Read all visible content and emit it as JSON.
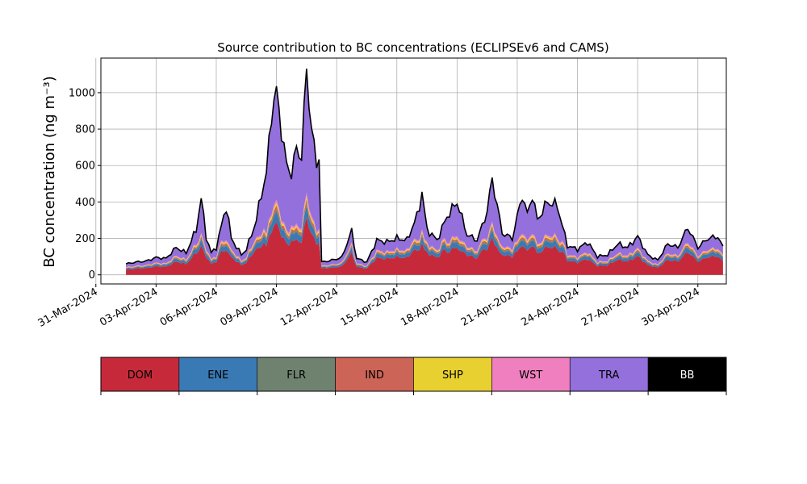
{
  "chart_data": {
    "type": "area",
    "title": "Source contribution to BC concentrations (ECLIPSEv6 and CAMS)",
    "ylabel": "BC concentration (ng m⁻³)",
    "xlabel": "",
    "ylim": [
      -50,
      1190
    ],
    "xlim": [
      "2024-03-31T06:00",
      "2024-05-01T10:00"
    ],
    "yticks": [
      0,
      200,
      400,
      600,
      800,
      1000
    ],
    "xticks": [
      "31-Mar-2024",
      "03-Apr-2024",
      "06-Apr-2024",
      "09-Apr-2024",
      "12-Apr-2024",
      "15-Apr-2024",
      "18-Apr-2024",
      "21-Apr-2024",
      "24-Apr-2024",
      "27-Apr-2024",
      "30-Apr-2024"
    ],
    "grid": true,
    "start": "2024-04-01T12:00",
    "end": "2024-05-01T06:00",
    "total_points": [
      [
        "2024-04-01T12:00",
        60
      ],
      [
        "2024-04-02T00:00",
        70
      ],
      [
        "2024-04-02T12:00",
        75
      ],
      [
        "2024-04-03T00:00",
        95
      ],
      [
        "2024-04-03T12:00",
        90
      ],
      [
        "2024-04-04T00:00",
        150
      ],
      [
        "2024-04-04T12:00",
        120
      ],
      [
        "2024-04-05T00:00",
        250
      ],
      [
        "2024-04-05T06:00",
        420
      ],
      [
        "2024-04-05T12:00",
        210
      ],
      [
        "2024-04-05T18:00",
        120
      ],
      [
        "2024-04-06T00:00",
        150
      ],
      [
        "2024-04-06T12:00",
        380
      ],
      [
        "2024-04-06T18:00",
        200
      ],
      [
        "2024-04-07T06:00",
        110
      ],
      [
        "2024-04-07T12:00",
        140
      ],
      [
        "2024-04-08T00:00",
        300
      ],
      [
        "2024-04-08T06:00",
        450
      ],
      [
        "2024-04-08T12:00",
        550
      ],
      [
        "2024-04-08T18:00",
        900
      ],
      [
        "2024-04-09T00:00",
        1000
      ],
      [
        "2024-04-09T06:00",
        800
      ],
      [
        "2024-04-09T12:00",
        600
      ],
      [
        "2024-04-09T18:00",
        560
      ],
      [
        "2024-04-10T00:00",
        690
      ],
      [
        "2024-04-10T06:00",
        650
      ],
      [
        "2024-04-10T12:00",
        1130
      ],
      [
        "2024-04-10T18:00",
        800
      ],
      [
        "2024-04-11T00:00",
        600
      ],
      [
        "2024-04-11T03:00",
        670
      ],
      [
        "2024-04-11T06:00",
        70
      ],
      [
        "2024-04-11T18:00",
        80
      ],
      [
        "2024-04-12T06:00",
        95
      ],
      [
        "2024-04-12T18:00",
        240
      ],
      [
        "2024-04-13T00:00",
        90
      ],
      [
        "2024-04-13T12:00",
        70
      ],
      [
        "2024-04-14T00:00",
        190
      ],
      [
        "2024-04-14T12:00",
        180
      ],
      [
        "2024-04-15T00:00",
        200
      ],
      [
        "2024-04-15T12:00",
        190
      ],
      [
        "2024-04-16T00:00",
        320
      ],
      [
        "2024-04-16T06:00",
        450
      ],
      [
        "2024-04-16T12:00",
        250
      ],
      [
        "2024-04-17T00:00",
        190
      ],
      [
        "2024-04-17T12:00",
        320
      ],
      [
        "2024-04-18T00:00",
        400
      ],
      [
        "2024-04-18T12:00",
        220
      ],
      [
        "2024-04-19T00:00",
        190
      ],
      [
        "2024-04-19T12:00",
        350
      ],
      [
        "2024-04-19T18:00",
        530
      ],
      [
        "2024-04-20T06:00",
        230
      ],
      [
        "2024-04-20T18:00",
        200
      ],
      [
        "2024-04-21T06:00",
        440
      ],
      [
        "2024-04-21T12:00",
        330
      ],
      [
        "2024-04-21T18:00",
        440
      ],
      [
        "2024-04-22T00:00",
        300
      ],
      [
        "2024-04-22T12:00",
        400
      ],
      [
        "2024-04-23T00:00",
        380
      ],
      [
        "2024-04-23T12:00",
        160
      ],
      [
        "2024-04-24T00:00",
        140
      ],
      [
        "2024-04-24T12:00",
        180
      ],
      [
        "2024-04-25T00:00",
        100
      ],
      [
        "2024-04-25T12:00",
        110
      ],
      [
        "2024-04-26T00:00",
        170
      ],
      [
        "2024-04-26T12:00",
        150
      ],
      [
        "2024-04-27T00:00",
        210
      ],
      [
        "2024-04-27T12:00",
        110
      ],
      [
        "2024-04-28T00:00",
        80
      ],
      [
        "2024-04-28T12:00",
        170
      ],
      [
        "2024-04-29T00:00",
        150
      ],
      [
        "2024-04-29T12:00",
        260
      ],
      [
        "2024-04-30T00:00",
        150
      ],
      [
        "2024-04-30T12:00",
        200
      ],
      [
        "2024-05-01T00:00",
        210
      ],
      [
        "2024-05-01T06:00",
        150
      ]
    ],
    "stack_order": [
      "DOM",
      "ENE",
      "FLR",
      "IND",
      "SHP",
      "WST",
      "TRA",
      "BB"
    ],
    "legend": [
      {
        "name": "DOM",
        "color": "#c62a3a",
        "text_color": "#000000"
      },
      {
        "name": "ENE",
        "color": "#3a7ab4",
        "text_color": "#000000"
      },
      {
        "name": "FLR",
        "color": "#6f8270",
        "text_color": "#000000"
      },
      {
        "name": "IND",
        "color": "#cc6457",
        "text_color": "#000000"
      },
      {
        "name": "SHP",
        "color": "#e8d030",
        "text_color": "#000000"
      },
      {
        "name": "WST",
        "color": "#f07fbf",
        "text_color": "#000000"
      },
      {
        "name": "TRA",
        "color": "#9370db",
        "text_color": "#000000"
      },
      {
        "name": "BB",
        "color": "#000000",
        "text_color": "#ffffff"
      }
    ],
    "legend_placement": "bottom"
  }
}
